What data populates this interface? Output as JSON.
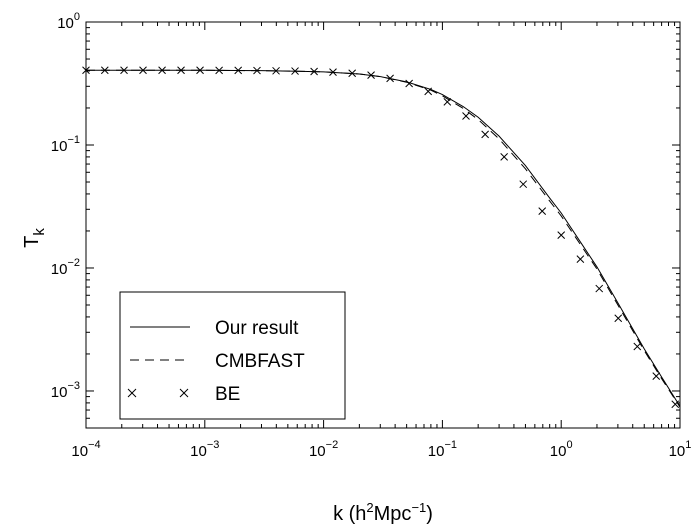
{
  "chart_data": {
    "type": "line",
    "title": "",
    "xscale": "log",
    "yscale": "log",
    "xlim": [
      0.0001,
      10
    ],
    "ylim": [
      0.0005,
      1
    ],
    "xlabel": {
      "base": "k (h",
      "sup1": "2",
      "mid": "Mpc",
      "sup2": "−1",
      "end": ")"
    },
    "ylabel": {
      "base": "T",
      "sub": "k"
    },
    "xticks": [
      {
        "value": 0.0001,
        "base": "10",
        "exp": "−4"
      },
      {
        "value": 0.001,
        "base": "10",
        "exp": "−3"
      },
      {
        "value": 0.01,
        "base": "10",
        "exp": "−2"
      },
      {
        "value": 0.1,
        "base": "10",
        "exp": "−1"
      },
      {
        "value": 1,
        "base": "10",
        "exp": "0"
      },
      {
        "value": 10,
        "base": "10",
        "exp": "1"
      }
    ],
    "yticks": [
      {
        "value": 0.001,
        "base": "10",
        "exp": "−3"
      },
      {
        "value": 0.01,
        "base": "10",
        "exp": "−2"
      },
      {
        "value": 0.1,
        "base": "10",
        "exp": "−1"
      },
      {
        "value": 1,
        "base": "10",
        "exp": "0"
      }
    ],
    "grid": false,
    "legend_position": "lower-left",
    "series": [
      {
        "name": "Our result",
        "style": "solid",
        "x": [
          0.0001,
          0.0003,
          0.001,
          0.003,
          0.006,
          0.01,
          0.02,
          0.03,
          0.05,
          0.08,
          0.1,
          0.15,
          0.2,
          0.3,
          0.5,
          0.8,
          1,
          1.5,
          2,
          3,
          5,
          7,
          10
        ],
        "y": [
          0.405,
          0.405,
          0.405,
          0.402,
          0.398,
          0.393,
          0.378,
          0.36,
          0.326,
          0.283,
          0.257,
          0.205,
          0.168,
          0.118,
          0.068,
          0.037,
          0.028,
          0.0155,
          0.0102,
          0.0052,
          0.0022,
          0.0013,
          0.00075
        ]
      },
      {
        "name": "CMBFAST",
        "style": "dashed",
        "x": [
          0.0001,
          0.0003,
          0.001,
          0.003,
          0.006,
          0.01,
          0.02,
          0.03,
          0.05,
          0.08,
          0.1,
          0.15,
          0.2,
          0.3,
          0.5,
          0.8,
          1,
          1.5,
          2,
          3,
          5,
          7,
          10
        ],
        "y": [
          0.405,
          0.405,
          0.405,
          0.402,
          0.398,
          0.393,
          0.378,
          0.36,
          0.324,
          0.279,
          0.251,
          0.198,
          0.161,
          0.112,
          0.064,
          0.035,
          0.0265,
          0.0148,
          0.0098,
          0.005,
          0.00213,
          0.00126,
          0.00074
        ]
      },
      {
        "name": "BE",
        "style": "markers",
        "marker": "x",
        "x": [
          0.0001,
          0.000144,
          0.000209,
          0.000302,
          0.000437,
          0.000631,
          0.000912,
          0.00132,
          0.00191,
          0.00275,
          0.00398,
          0.00575,
          0.00832,
          0.012,
          0.0174,
          0.0251,
          0.0363,
          0.0525,
          0.0759,
          0.11,
          0.158,
          0.229,
          0.331,
          0.479,
          0.692,
          1,
          1.45,
          2.09,
          3.02,
          4.37,
          6.31,
          9.12
        ],
        "y": [
          0.405,
          0.405,
          0.405,
          0.405,
          0.405,
          0.405,
          0.405,
          0.404,
          0.404,
          0.403,
          0.401,
          0.399,
          0.396,
          0.391,
          0.383,
          0.37,
          0.348,
          0.316,
          0.273,
          0.224,
          0.172,
          0.122,
          0.08,
          0.048,
          0.029,
          0.0185,
          0.0118,
          0.0068,
          0.0039,
          0.0023,
          0.00132,
          0.00078
        ]
      }
    ]
  }
}
